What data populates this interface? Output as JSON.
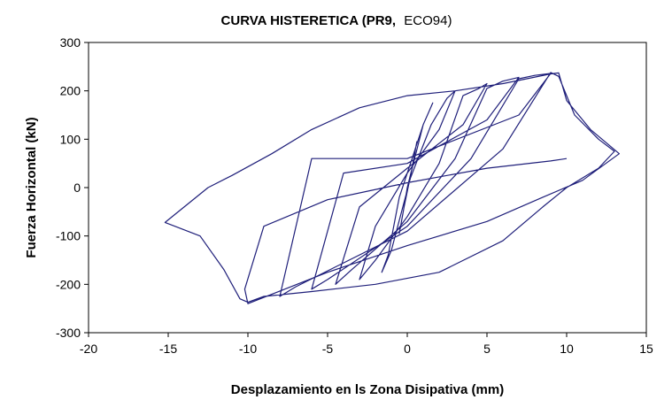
{
  "chart_data": {
    "type": "line",
    "title": "CURVA HISTERETICA (PR9, ECO94)",
    "title_main": "CURVA HISTERETICA (PR9,",
    "title_tail": "ECO94)",
    "xlabel": "Desplazamiento en ls Zona Disipativa (mm)",
    "ylabel": "Fuerza Horizontal (kN)",
    "xlim": [
      -20,
      15
    ],
    "ylim": [
      -300,
      300
    ],
    "xticks": [
      -20,
      -15,
      -10,
      -5,
      0,
      5,
      10,
      15
    ],
    "yticks": [
      -300,
      -200,
      -100,
      0,
      100,
      200,
      300
    ],
    "grid": false,
    "line_color": "#1f1f7a",
    "series": [
      {
        "values": [
          [
            0,
            0
          ],
          [
            0.3,
            40
          ],
          [
            0.6,
            95
          ],
          [
            0.3,
            40
          ],
          [
            -0.2,
            -40
          ],
          [
            -0.5,
            -95
          ],
          [
            -0.2,
            -40
          ],
          [
            0,
            0
          ],
          [
            1.0,
            130
          ],
          [
            1.6,
            175
          ],
          [
            1.0,
            130
          ],
          [
            -0.5,
            -20
          ],
          [
            -1.2,
            -140
          ],
          [
            -1.6,
            -175
          ],
          [
            -1.0,
            -130
          ],
          [
            0.2,
            20
          ],
          [
            1.5,
            130
          ],
          [
            2.5,
            185
          ],
          [
            3.0,
            200
          ],
          [
            2.0,
            120
          ],
          [
            0,
            30
          ],
          [
            -2.0,
            -80
          ],
          [
            -3.0,
            -190
          ],
          [
            -2.0,
            -150
          ],
          [
            0,
            -60
          ],
          [
            2.0,
            50
          ],
          [
            3.5,
            190
          ],
          [
            4.5,
            205
          ],
          [
            5.0,
            215
          ],
          [
            3.5,
            130
          ],
          [
            0,
            40
          ],
          [
            -3.0,
            -40
          ],
          [
            -4.5,
            -200
          ],
          [
            -3.5,
            -170
          ],
          [
            0,
            -70
          ],
          [
            3.0,
            60
          ],
          [
            5.0,
            205
          ],
          [
            6.0,
            220
          ],
          [
            7.0,
            228
          ],
          [
            5.0,
            140
          ],
          [
            0,
            50
          ],
          [
            -4.0,
            30
          ],
          [
            -6.0,
            -210
          ],
          [
            -5.0,
            -190
          ],
          [
            0,
            -80
          ],
          [
            4.0,
            60
          ],
          [
            7.0,
            225
          ],
          [
            8.0,
            232
          ],
          [
            9.0,
            236
          ],
          [
            7.0,
            150
          ],
          [
            0,
            60
          ],
          [
            -6.0,
            60
          ],
          [
            -8.0,
            -225
          ],
          [
            -7.0,
            -205
          ],
          [
            0,
            -90
          ],
          [
            6.0,
            80
          ],
          [
            9.0,
            238
          ],
          [
            9.5,
            230
          ],
          [
            10.5,
            150
          ],
          [
            12.0,
            100
          ],
          [
            13.0,
            75
          ],
          [
            12.0,
            40
          ],
          [
            10.0,
            0
          ],
          [
            8.5,
            -40
          ],
          [
            6.0,
            -110
          ],
          [
            2.0,
            -175
          ],
          [
            -2.0,
            -200
          ],
          [
            -6.0,
            -215
          ],
          [
            -9.0,
            -225
          ],
          [
            -10.0,
            -237
          ],
          [
            -10.5,
            -230
          ],
          [
            -11.5,
            -170
          ],
          [
            -13.0,
            -100
          ],
          [
            -15.2,
            -72
          ],
          [
            -14.0,
            -40
          ],
          [
            -12.5,
            0
          ],
          [
            -11.0,
            25
          ],
          [
            -8.5,
            70
          ],
          [
            -6.0,
            120
          ],
          [
            -3.0,
            165
          ],
          [
            0,
            190
          ],
          [
            3.0,
            200
          ],
          [
            6.0,
            215
          ],
          [
            9.0,
            235
          ],
          [
            9.5,
            237
          ],
          [
            10.0,
            180
          ],
          [
            11.5,
            120
          ],
          [
            13.3,
            70
          ],
          [
            11.0,
            15
          ],
          [
            8.5,
            -20
          ],
          [
            5.0,
            -70
          ],
          [
            0,
            -120
          ],
          [
            -5.0,
            -175
          ],
          [
            -10.0,
            -240
          ],
          [
            -10.2,
            -210
          ],
          [
            -9.0,
            -80
          ],
          [
            -5.0,
            -25
          ],
          [
            0,
            10
          ],
          [
            5.0,
            40
          ],
          [
            9.0,
            55
          ],
          [
            10.0,
            60
          ]
        ]
      }
    ]
  }
}
